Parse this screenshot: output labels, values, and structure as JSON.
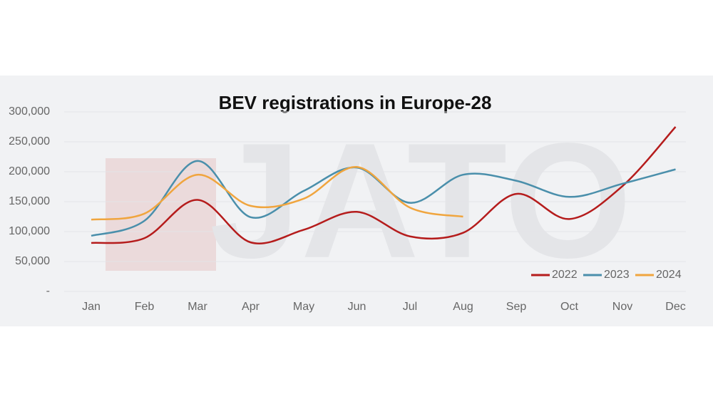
{
  "chart_data": {
    "type": "line",
    "title": "BEV registrations in Europe-28",
    "watermark": "JATO",
    "categories": [
      "Jan",
      "Feb",
      "Mar",
      "Apr",
      "May",
      "Jun",
      "Jul",
      "Aug",
      "Sep",
      "Oct",
      "Nov",
      "Dec"
    ],
    "series": [
      {
        "name": "2022",
        "color": "#b51c1c",
        "values": [
          81000,
          89000,
          153000,
          82000,
          103000,
          133000,
          92000,
          98000,
          163000,
          121000,
          176000,
          275000
        ]
      },
      {
        "name": "2023",
        "color": "#4a8fab",
        "values": [
          93000,
          118000,
          218000,
          124000,
          168000,
          207000,
          148000,
          195000,
          185000,
          158000,
          180000,
          204000
        ]
      },
      {
        "name": "2024",
        "color": "#f0a53e",
        "values": [
          120000,
          130000,
          195000,
          143000,
          155000,
          208000,
          140000,
          125000,
          null,
          null,
          null,
          null
        ]
      }
    ],
    "ylim": [
      0,
      300000
    ],
    "yticks": [
      {
        "value": 0,
        "label": "-"
      },
      {
        "value": 50000,
        "label": "50,000"
      },
      {
        "value": 100000,
        "label": "100,000"
      },
      {
        "value": 150000,
        "label": "150,000"
      },
      {
        "value": 200000,
        "label": "200,000"
      },
      {
        "value": 250000,
        "label": "250,000"
      },
      {
        "value": 300000,
        "label": "300,000"
      }
    ],
    "grid": true,
    "legend": "bottom-right"
  }
}
